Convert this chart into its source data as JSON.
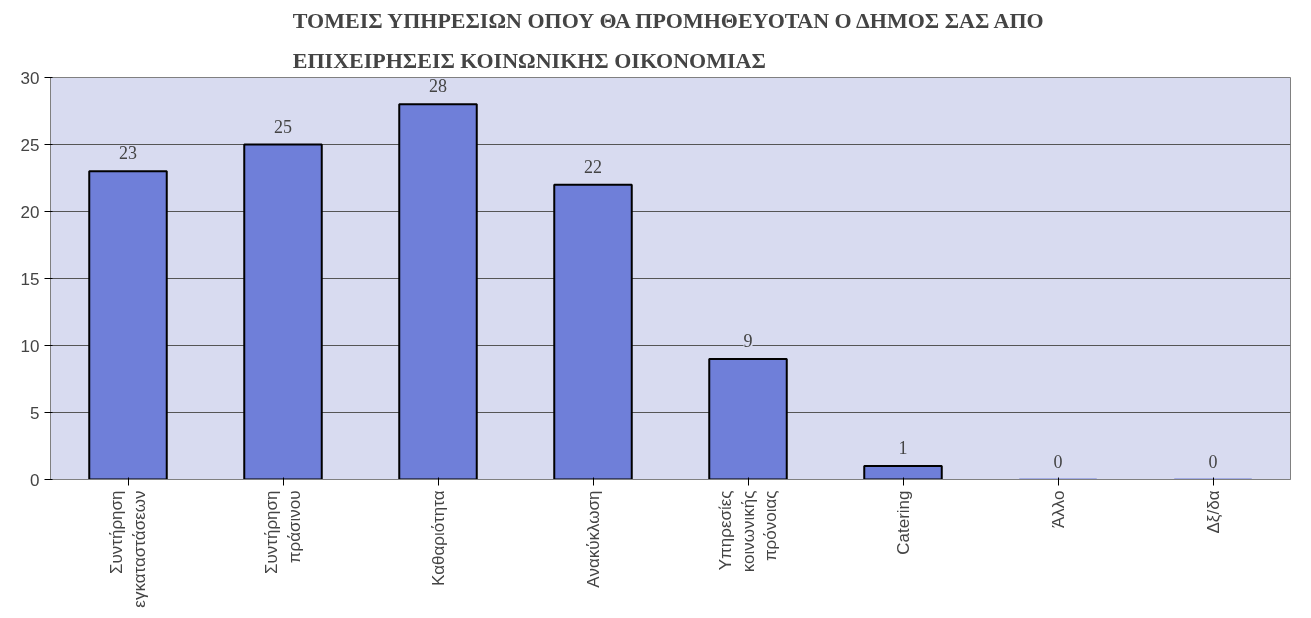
{
  "chart_data": {
    "type": "bar",
    "title": "ΤΟΜΕΙΣ ΥΠΗΡΕΣΙΩΝ ΟΠΟΥ ΘΑ ΠΡΟΜΗΘΕΥΟΤΑΝ Ο ΔΗΜΟΣ ΣΑΣ ΑΠΟ ΕΠΙΧΕΙΡΗΣΕΙΣ ΚΟΙΝΩΝΙΚΗΣ ΟΙΚΟΝΟΜΙΑΣ",
    "categories": [
      "Συντήρηση εγκαταστάσεων",
      "Συντήρηση πράσινου",
      "Καθαριότητα",
      "Ανακύκλωση",
      "Υπηρεσίες κοινωνικής πρόνοιας",
      "Catering",
      "Άλλο",
      "Δξ/δα"
    ],
    "values": [
      23,
      25,
      28,
      22,
      9,
      1,
      0,
      0
    ],
    "color": "#6f7fd9",
    "ylim": [
      0,
      30
    ],
    "yticks": [
      0,
      5,
      10,
      15,
      20,
      25,
      30
    ],
    "grid": "y",
    "data_labels": true
  }
}
